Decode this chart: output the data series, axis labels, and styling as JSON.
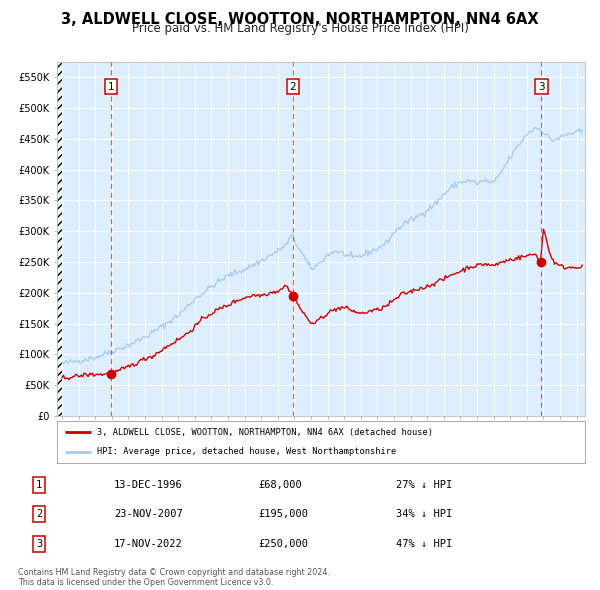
{
  "title": "3, ALDWELL CLOSE, WOOTTON, NORTHAMPTON, NN4 6AX",
  "subtitle": "Price paid vs. HM Land Registry's House Price Index (HPI)",
  "title_fontsize": 10.5,
  "subtitle_fontsize": 8.5,
  "xlim": [
    1993.7,
    2025.5
  ],
  "ylim": [
    0,
    575000
  ],
  "yticks": [
    0,
    50000,
    100000,
    150000,
    200000,
    250000,
    300000,
    350000,
    400000,
    450000,
    500000,
    550000
  ],
  "ytick_labels": [
    "£0",
    "£50K",
    "£100K",
    "£150K",
    "£200K",
    "£250K",
    "£300K",
    "£350K",
    "£400K",
    "£450K",
    "£500K",
    "£550K"
  ],
  "xticks": [
    1994,
    1995,
    1996,
    1997,
    1998,
    1999,
    2000,
    2001,
    2002,
    2003,
    2004,
    2005,
    2006,
    2007,
    2008,
    2009,
    2010,
    2011,
    2012,
    2013,
    2014,
    2015,
    2016,
    2017,
    2018,
    2019,
    2020,
    2021,
    2022,
    2023,
    2024,
    2025
  ],
  "hpi_color": "#aaccee",
  "price_color": "#cc0000",
  "sale_marker_color": "#cc0000",
  "vline_color": "#dd4444",
  "background_color": "#ffffff",
  "plot_bg_color": "#ddeeff",
  "grid_color": "#ffffff",
  "sale1_date": 1996.96,
  "sale1_price": 68000,
  "sale2_date": 2007.9,
  "sale2_price": 195000,
  "sale3_date": 2022.88,
  "sale3_price": 250000,
  "legend_line1": "3, ALDWELL CLOSE, WOOTTON, NORTHAMPTON, NN4 6AX (detached house)",
  "legend_line2": "HPI: Average price, detached house, West Northamptonshire",
  "table_rows": [
    [
      "1",
      "13-DEC-1996",
      "£68,000",
      "27% ↓ HPI"
    ],
    [
      "2",
      "23-NOV-2007",
      "£195,000",
      "34% ↓ HPI"
    ],
    [
      "3",
      "17-NOV-2022",
      "£250,000",
      "47% ↓ HPI"
    ]
  ],
  "footnote": "Contains HM Land Registry data © Crown copyright and database right 2024.\nThis data is licensed under the Open Government Licence v3.0."
}
